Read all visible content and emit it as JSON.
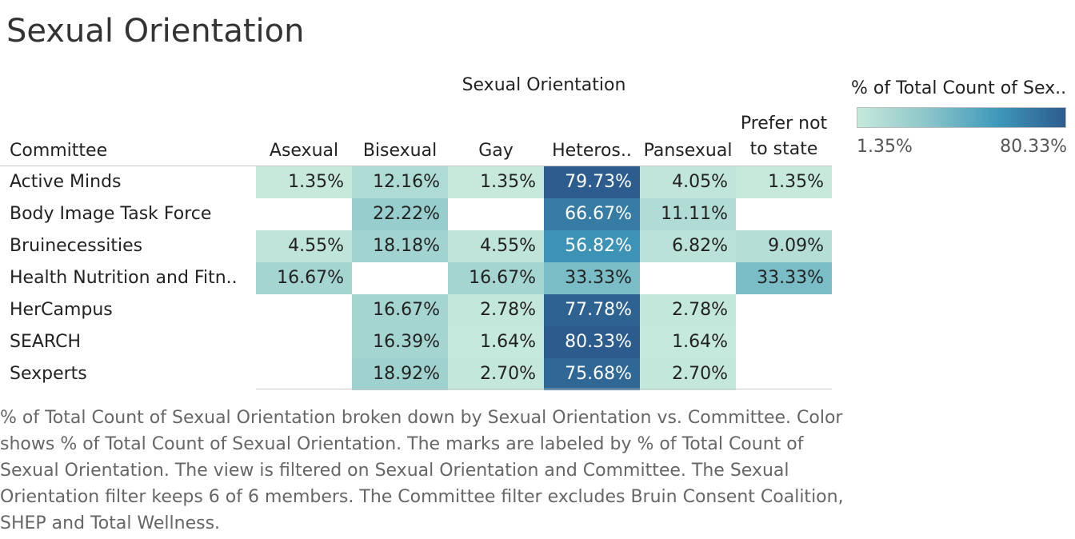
{
  "title": "Sexual Orientation",
  "chart_data": {
    "type": "heatmap",
    "column_dimension": "Sexual Orientation",
    "row_dimension": "Committee",
    "columns": [
      "Asexual",
      "Bisexual",
      "Gay",
      "Heteros..",
      "Pansexual",
      "Prefer not to state"
    ],
    "rows": [
      {
        "label": "Active Minds",
        "values": [
          "1.35%",
          "12.16%",
          "1.35%",
          "79.73%",
          "4.05%",
          "1.35%"
        ]
      },
      {
        "label": "Body Image Task Force",
        "values": [
          "",
          "22.22%",
          "",
          "66.67%",
          "11.11%",
          ""
        ]
      },
      {
        "label": "Bruinecessities",
        "values": [
          "4.55%",
          "18.18%",
          "4.55%",
          "56.82%",
          "6.82%",
          "9.09%"
        ]
      },
      {
        "label": "Health Nutrition and Fitn..",
        "values": [
          "16.67%",
          "",
          "16.67%",
          "33.33%",
          "",
          "33.33%"
        ]
      },
      {
        "label": "HerCampus",
        "values": [
          "",
          "16.67%",
          "2.78%",
          "77.78%",
          "2.78%",
          ""
        ]
      },
      {
        "label": "SEARCH",
        "values": [
          "",
          "16.39%",
          "1.64%",
          "80.33%",
          "1.64%",
          ""
        ]
      },
      {
        "label": "Sexperts",
        "values": [
          "",
          "18.92%",
          "2.70%",
          "75.68%",
          "2.70%",
          ""
        ]
      }
    ],
    "color_scale": {
      "label": "% of Total Count of Sex..",
      "min": 1.35,
      "max": 80.33,
      "min_label": "1.35%",
      "max_label": "80.33%",
      "colors": [
        "#c6e9dc",
        "#8cc6c9",
        "#3f9abb",
        "#2c5c8d"
      ]
    }
  },
  "caption": "% of Total Count of Sexual Orientation broken down by Sexual Orientation vs. Committee.  Color shows % of Total Count of Sexual Orientation.  The marks are labeled by % of Total Count of Sexual Orientation. The view is filtered on Sexual Orientation and Committee. The Sexual Orientation filter keeps 6 of 6 members. The Committee filter excludes Bruin Consent Coalition, SHEP and Total Wellness."
}
